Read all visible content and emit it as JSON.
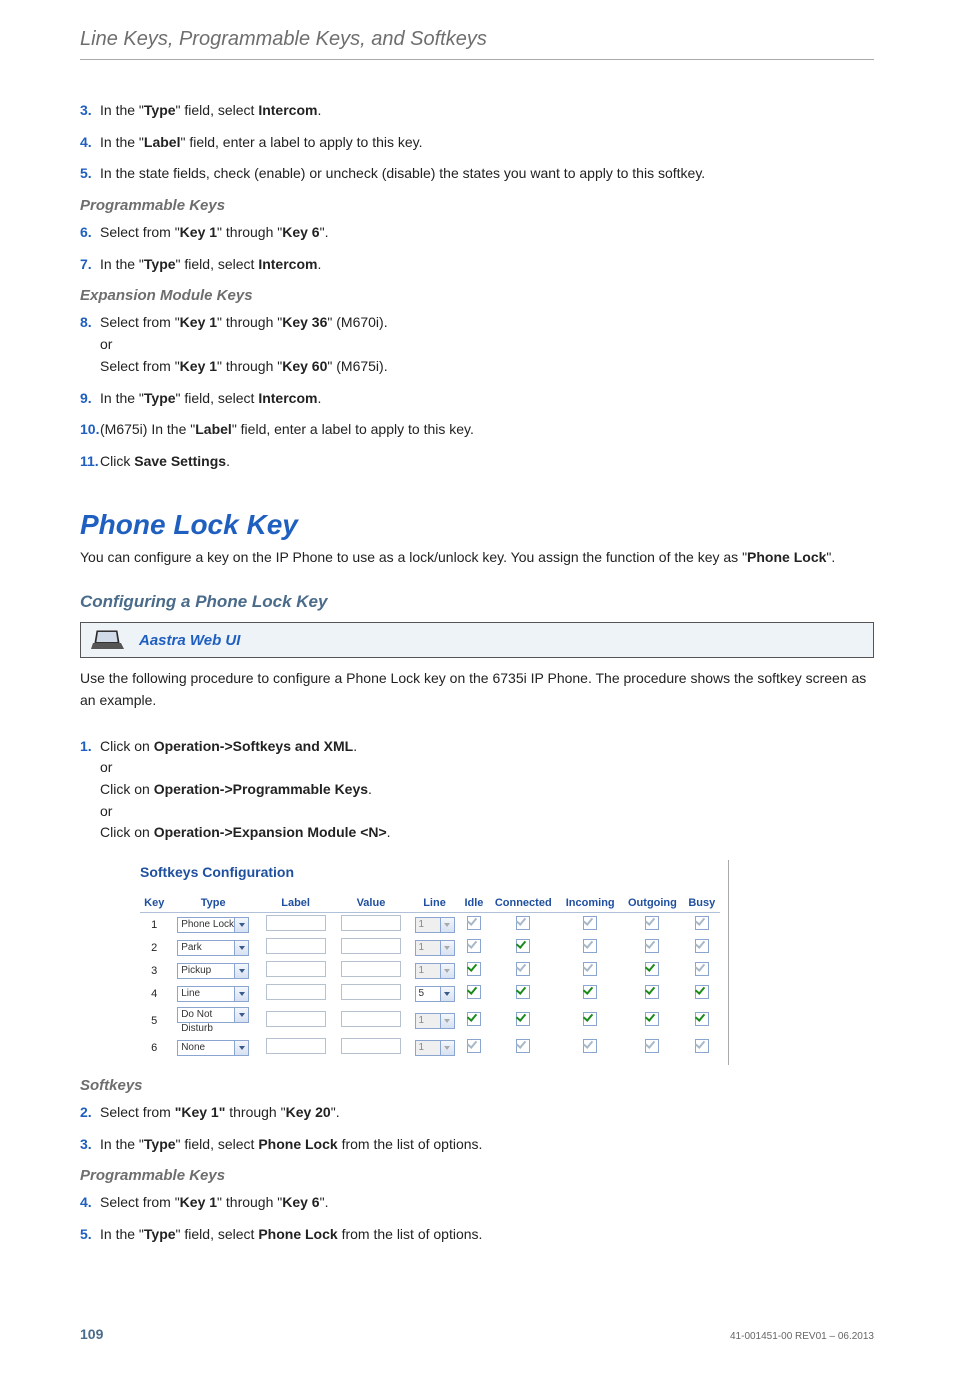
{
  "header": "Line Keys, Programmable Keys, and Softkeys",
  "steps_a": [
    {
      "n": "3.",
      "parts": [
        "In the \"",
        "Type",
        "\" field, select ",
        "Intercom",
        "."
      ]
    },
    {
      "n": "4.",
      "parts": [
        "In the \"",
        "Label",
        "\" field, enter a label to apply to this key."
      ]
    },
    {
      "n": "5.",
      "parts": [
        "In the state fields, check (enable) or uncheck (disable) the states you want to apply to this softkey."
      ]
    }
  ],
  "sub_prog": "Programmable Keys",
  "steps_b": [
    {
      "n": "6.",
      "parts": [
        "Select from \"",
        "Key 1",
        "\" through \"",
        "Key 6",
        "\"."
      ]
    },
    {
      "n": "7.",
      "parts": [
        "In the \"",
        "Type",
        "\" field, select ",
        "Intercom",
        "."
      ]
    }
  ],
  "sub_exp": "Expansion Module Keys",
  "steps_c": [
    {
      "n": "8.",
      "parts": [
        "Select from \"",
        "Key 1",
        "\" through \"",
        "Key 36",
        "\" (M670i).",
        "\nor\n",
        "Select from \"",
        "Key 1",
        "\" through \"",
        "Key 60",
        "\" (M675i)."
      ]
    },
    {
      "n": "9.",
      "parts": [
        "In the \"",
        "Type",
        "\" field, select ",
        "Intercom",
        "."
      ]
    },
    {
      "n": "10.",
      "parts": [
        "(M675i) In the \"",
        "Label",
        "\" field, enter a label to apply to this key."
      ]
    },
    {
      "n": "11.",
      "parts": [
        "Click ",
        "Save Settings",
        "."
      ]
    }
  ],
  "section": "Phone Lock Key",
  "intro_parts": [
    "You can configure a key on the IP Phone to use as a lock/unlock key. You assign the function of the key as \"",
    "Phone Lock",
    "\"."
  ],
  "subsec": "Configuring a Phone Lock Key",
  "uibox": "Aastra Web UI",
  "intro2": "Use the following procedure to configure a Phone Lock key on the 6735i IP Phone. The procedure shows the softkey screen as an example.",
  "steps_d": [
    {
      "n": "1.",
      "parts": [
        "Click on ",
        "Operation->Softkeys and XML",
        ".",
        "\nor\n",
        "Click on ",
        "Operation->Programmable Keys",
        ".",
        "\nor\n",
        "Click on ",
        "Operation->Expansion Module <N>",
        "."
      ]
    }
  ],
  "embed_title": "Softkeys Configuration",
  "table": {
    "columns": [
      "Key",
      "Type",
      "Label",
      "Value",
      "Line",
      "Idle",
      "Connected",
      "Incoming",
      "Outgoing",
      "Busy"
    ],
    "rows": [
      {
        "k": "1",
        "type": "Phone Lock",
        "type_enabled": true,
        "line": "1",
        "line_enabled": false,
        "cb": [
          "gray",
          "gray",
          "gray",
          "gray",
          "gray"
        ]
      },
      {
        "k": "2",
        "type": "Park",
        "type_enabled": true,
        "line": "1",
        "line_enabled": false,
        "cb": [
          "gray",
          "green",
          "gray",
          "gray",
          "gray"
        ]
      },
      {
        "k": "3",
        "type": "Pickup",
        "type_enabled": true,
        "line": "1",
        "line_enabled": false,
        "cb": [
          "green",
          "gray",
          "gray",
          "green",
          "gray"
        ]
      },
      {
        "k": "4",
        "type": "Line",
        "type_enabled": true,
        "line": "5",
        "line_enabled": true,
        "cb": [
          "green",
          "green",
          "green",
          "green",
          "green"
        ]
      },
      {
        "k": "5",
        "type": "Do Not Disturb",
        "type_enabled": true,
        "line": "1",
        "line_enabled": false,
        "cb": [
          "green",
          "green",
          "green",
          "green",
          "green"
        ]
      },
      {
        "k": "6",
        "type": "None",
        "type_enabled": true,
        "line": "1",
        "line_enabled": false,
        "cb": [
          "gray",
          "gray",
          "gray",
          "gray",
          "gray"
        ]
      }
    ]
  },
  "sub_soft": "Softkeys",
  "steps_e": [
    {
      "n": "2.",
      "parts": [
        "Select from ",
        "\"Key 1\"",
        " through \"",
        "Key 20",
        "\"."
      ]
    },
    {
      "n": "3.",
      "parts": [
        "In the \"",
        "Type",
        "\" field, select ",
        "Phone Lock",
        " from the list of options."
      ]
    }
  ],
  "sub_prog2": "Programmable Keys",
  "steps_f": [
    {
      "n": "4.",
      "parts": [
        "Select from \"",
        "Key 1",
        "\" through \"",
        "Key 6",
        "\"."
      ]
    },
    {
      "n": "5.",
      "parts": [
        "In the \"",
        "Type",
        "\" field, select ",
        "Phone Lock",
        " from the list of options."
      ]
    }
  ],
  "footer": {
    "page": "109",
    "rev": "41-001451-00 REV01 – 06.2013"
  }
}
